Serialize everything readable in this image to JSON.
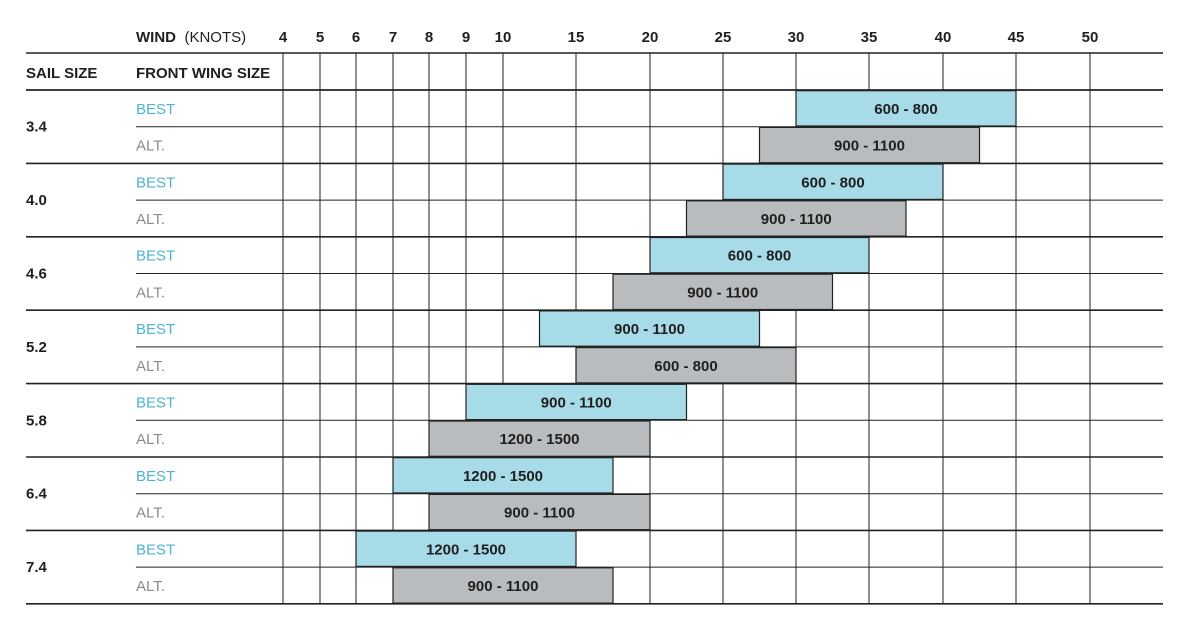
{
  "header": {
    "wind_label": "WIND",
    "wind_unit": "(KNOTS)",
    "sail_size_label": "SAIL SIZE",
    "front_wing_label": "FRONT WING SIZE"
  },
  "colors": {
    "best": "#a8dbe8",
    "alt": "#b9bcbf",
    "best_text": "#4db3d0",
    "alt_text": "#8a8a8a",
    "lines": "#222222"
  },
  "chart_data": {
    "type": "bar",
    "orientation": "horizontal",
    "x_ticks": [
      4,
      5,
      6,
      7,
      8,
      9,
      10,
      15,
      20,
      25,
      30,
      35,
      40,
      45,
      50
    ],
    "xlabel": "WIND (KNOTS)",
    "grid": true,
    "groups": [
      {
        "sail": "3.4",
        "rows": [
          {
            "type": "BEST",
            "label": "600 - 800",
            "start": 30,
            "end": 45
          },
          {
            "type": "ALT.",
            "label": "900 - 1100",
            "start": 27.5,
            "end": 42.5
          }
        ]
      },
      {
        "sail": "4.0",
        "rows": [
          {
            "type": "BEST",
            "label": "600 - 800",
            "start": 25,
            "end": 40
          },
          {
            "type": "ALT.",
            "label": "900 - 1100",
            "start": 22.5,
            "end": 37.5
          }
        ]
      },
      {
        "sail": "4.6",
        "rows": [
          {
            "type": "BEST",
            "label": "600 - 800",
            "start": 20,
            "end": 35
          },
          {
            "type": "ALT.",
            "label": "900 - 1100",
            "start": 17.5,
            "end": 32.5
          }
        ]
      },
      {
        "sail": "5.2",
        "rows": [
          {
            "type": "BEST",
            "label": "900 - 1100",
            "start": 12.5,
            "end": 27.5
          },
          {
            "type": "ALT.",
            "label": "600 - 800",
            "start": 15,
            "end": 30
          }
        ]
      },
      {
        "sail": "5.8",
        "rows": [
          {
            "type": "BEST",
            "label": "900 - 1100",
            "start": 9,
            "end": 22.5
          },
          {
            "type": "ALT.",
            "label": "1200 - 1500",
            "start": 8,
            "end": 20
          }
        ]
      },
      {
        "sail": "6.4",
        "rows": [
          {
            "type": "BEST",
            "label": "1200 - 1500",
            "start": 7,
            "end": 17.5
          },
          {
            "type": "ALT.",
            "label": "900 - 1100",
            "start": 8,
            "end": 20
          }
        ]
      },
      {
        "sail": "7.4",
        "rows": [
          {
            "type": "BEST",
            "label": "1200 - 1500",
            "start": 6,
            "end": 15
          },
          {
            "type": "ALT.",
            "label": "900 - 1100",
            "start": 7,
            "end": 17.5
          }
        ]
      }
    ]
  }
}
